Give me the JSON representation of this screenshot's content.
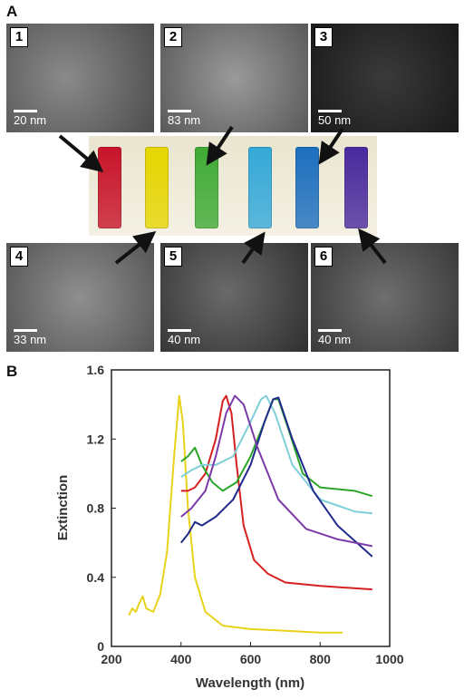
{
  "panel_a_label": "A",
  "panel_b_label": "B",
  "micrographs": [
    {
      "number": "1",
      "scale": "20 nm"
    },
    {
      "number": "2",
      "scale": "83 nm"
    },
    {
      "number": "3",
      "scale": "50 nm"
    },
    {
      "number": "4",
      "scale": "33 nm"
    },
    {
      "number": "5",
      "scale": "40 nm"
    },
    {
      "number": "6",
      "scale": "40 nm"
    }
  ],
  "vial_colors": [
    "#c8142a",
    "#e6d600",
    "#3faa35",
    "#35a9d9",
    "#1d6fbf",
    "#4a2a9e"
  ],
  "chart_data": {
    "type": "line",
    "xlabel": "Wavelength (nm)",
    "ylabel": "Extinction",
    "xlim": [
      200,
      1000
    ],
    "ylim": [
      0,
      1.6
    ],
    "x_ticks": [
      "200",
      "400",
      "600",
      "800",
      "1000"
    ],
    "y_ticks": [
      "0",
      "0.4",
      "0.8",
      "1.2",
      "1.6"
    ],
    "grid": false,
    "series": [
      {
        "color": "#e8d21a",
        "points": [
          [
            250,
            0.18
          ],
          [
            260,
            0.22
          ],
          [
            270,
            0.2
          ],
          [
            280,
            0.25
          ],
          [
            290,
            0.29
          ],
          [
            300,
            0.22
          ],
          [
            320,
            0.2
          ],
          [
            340,
            0.3
          ],
          [
            360,
            0.55
          ],
          [
            380,
            1.1
          ],
          [
            395,
            1.45
          ],
          [
            405,
            1.3
          ],
          [
            420,
            0.8
          ],
          [
            440,
            0.4
          ],
          [
            470,
            0.2
          ],
          [
            520,
            0.12
          ],
          [
            600,
            0.1
          ],
          [
            700,
            0.09
          ],
          [
            800,
            0.08
          ],
          [
            865,
            0.08
          ]
        ]
      },
      {
        "color": "#d62020",
        "points": [
          [
            400,
            0.9
          ],
          [
            420,
            0.9
          ],
          [
            440,
            0.92
          ],
          [
            470,
            1.0
          ],
          [
            500,
            1.2
          ],
          [
            520,
            1.42
          ],
          [
            530,
            1.45
          ],
          [
            545,
            1.35
          ],
          [
            560,
            1.05
          ],
          [
            580,
            0.7
          ],
          [
            610,
            0.5
          ],
          [
            650,
            0.42
          ],
          [
            700,
            0.37
          ],
          [
            800,
            0.35
          ],
          [
            950,
            0.33
          ]
        ]
      },
      {
        "color": "#2aa52a",
        "points": [
          [
            400,
            1.07
          ],
          [
            420,
            1.1
          ],
          [
            440,
            1.15
          ],
          [
            460,
            1.05
          ],
          [
            490,
            0.95
          ],
          [
            520,
            0.9
          ],
          [
            560,
            0.95
          ],
          [
            600,
            1.1
          ],
          [
            640,
            1.3
          ],
          [
            665,
            1.43
          ],
          [
            680,
            1.43
          ],
          [
            710,
            1.25
          ],
          [
            750,
            1.0
          ],
          [
            800,
            0.92
          ],
          [
            900,
            0.9
          ],
          [
            950,
            0.87
          ]
        ]
      },
      {
        "color": "#7ecfd8",
        "points": [
          [
            400,
            0.98
          ],
          [
            430,
            1.02
          ],
          [
            460,
            1.05
          ],
          [
            500,
            1.05
          ],
          [
            550,
            1.1
          ],
          [
            600,
            1.3
          ],
          [
            630,
            1.43
          ],
          [
            645,
            1.45
          ],
          [
            670,
            1.35
          ],
          [
            720,
            1.05
          ],
          [
            800,
            0.85
          ],
          [
            900,
            0.78
          ],
          [
            950,
            0.77
          ]
        ]
      },
      {
        "color": "#202a8a",
        "points": [
          [
            400,
            0.6
          ],
          [
            420,
            0.65
          ],
          [
            440,
            0.72
          ],
          [
            460,
            0.7
          ],
          [
            500,
            0.75
          ],
          [
            550,
            0.85
          ],
          [
            600,
            1.05
          ],
          [
            640,
            1.3
          ],
          [
            665,
            1.43
          ],
          [
            680,
            1.44
          ],
          [
            720,
            1.2
          ],
          [
            780,
            0.9
          ],
          [
            850,
            0.7
          ],
          [
            950,
            0.52
          ]
        ]
      },
      {
        "color": "#7b3aa8",
        "points": [
          [
            400,
            0.75
          ],
          [
            430,
            0.8
          ],
          [
            470,
            0.9
          ],
          [
            500,
            1.1
          ],
          [
            530,
            1.35
          ],
          [
            555,
            1.45
          ],
          [
            580,
            1.4
          ],
          [
            620,
            1.15
          ],
          [
            680,
            0.85
          ],
          [
            760,
            0.68
          ],
          [
            850,
            0.62
          ],
          [
            950,
            0.58
          ]
        ]
      }
    ]
  }
}
